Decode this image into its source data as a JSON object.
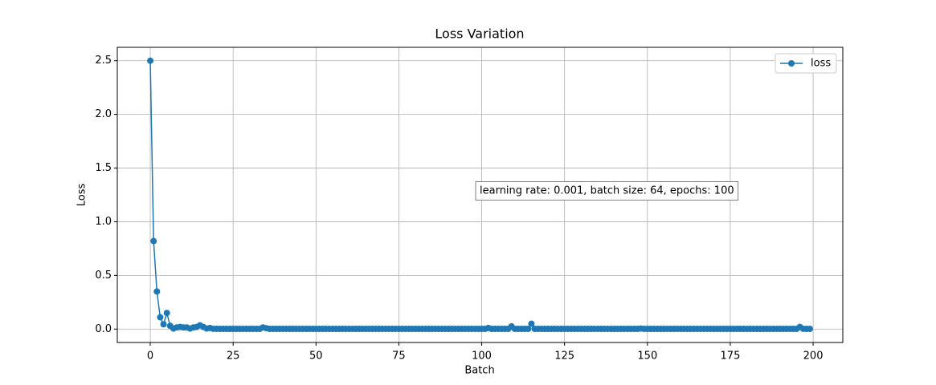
{
  "chart_data": {
    "type": "line",
    "title": "Loss Variation",
    "xlabel": "Batch",
    "ylabel": "Loss",
    "annotation": "learning rate: 0.001, batch size: 64, epochs: 100",
    "x": [
      0,
      1,
      2,
      3,
      4,
      5,
      6,
      7,
      8,
      9,
      10,
      11,
      12,
      13,
      14,
      15,
      16,
      17,
      18,
      19,
      20,
      21,
      22,
      23,
      24,
      25,
      26,
      27,
      28,
      29,
      30,
      31,
      32,
      33,
      34,
      35,
      36,
      37,
      38,
      39,
      40,
      41,
      42,
      43,
      44,
      45,
      46,
      47,
      48,
      49,
      50,
      51,
      52,
      53,
      54,
      55,
      56,
      57,
      58,
      59,
      60,
      61,
      62,
      63,
      64,
      65,
      66,
      67,
      68,
      69,
      70,
      71,
      72,
      73,
      74,
      75,
      76,
      77,
      78,
      79,
      80,
      81,
      82,
      83,
      84,
      85,
      86,
      87,
      88,
      89,
      90,
      91,
      92,
      93,
      94,
      95,
      96,
      97,
      98,
      99,
      100,
      101,
      102,
      103,
      104,
      105,
      106,
      107,
      108,
      109,
      110,
      111,
      112,
      113,
      114,
      115,
      116,
      117,
      118,
      119,
      120,
      121,
      122,
      123,
      124,
      125,
      126,
      127,
      128,
      129,
      130,
      131,
      132,
      133,
      134,
      135,
      136,
      137,
      138,
      139,
      140,
      141,
      142,
      143,
      144,
      145,
      146,
      147,
      148,
      149,
      150,
      151,
      152,
      153,
      154,
      155,
      156,
      157,
      158,
      159,
      160,
      161,
      162,
      163,
      164,
      165,
      166,
      167,
      168,
      169,
      170,
      171,
      172,
      173,
      174,
      175,
      176,
      177,
      178,
      179,
      180,
      181,
      182,
      183,
      184,
      185,
      186,
      187,
      188,
      189,
      190,
      191,
      192,
      193,
      194,
      195,
      196,
      197,
      198,
      199
    ],
    "series": [
      {
        "name": "loss",
        "color": "#1f77b4",
        "values": [
          2.5,
          0.82,
          0.35,
          0.11,
          0.045,
          0.15,
          0.03,
          0.005,
          0.015,
          0.02,
          0.015,
          0.015,
          0.005,
          0.015,
          0.02,
          0.035,
          0.02,
          0.005,
          0.01,
          0.003,
          0.002,
          0.002,
          0.002,
          0.002,
          0.002,
          0.002,
          0.002,
          0.002,
          0.002,
          0.002,
          0.002,
          0.002,
          0.002,
          0.002,
          0.015,
          0.008,
          0.002,
          0.002,
          0.002,
          0.002,
          0.002,
          0.002,
          0.002,
          0.002,
          0.002,
          0.002,
          0.002,
          0.002,
          0.002,
          0.002,
          0.002,
          0.002,
          0.002,
          0.002,
          0.002,
          0.002,
          0.002,
          0.002,
          0.002,
          0.002,
          0.002,
          0.002,
          0.002,
          0.002,
          0.002,
          0.002,
          0.002,
          0.002,
          0.002,
          0.002,
          0.002,
          0.002,
          0.002,
          0.002,
          0.002,
          0.002,
          0.002,
          0.002,
          0.002,
          0.002,
          0.002,
          0.002,
          0.002,
          0.002,
          0.002,
          0.002,
          0.002,
          0.002,
          0.002,
          0.002,
          0.002,
          0.002,
          0.002,
          0.002,
          0.002,
          0.002,
          0.002,
          0.002,
          0.002,
          0.002,
          0.002,
          0.002,
          0.01,
          0.002,
          0.002,
          0.002,
          0.002,
          0.002,
          0.002,
          0.025,
          0.002,
          0.002,
          0.002,
          0.002,
          0.002,
          0.05,
          0.002,
          0.002,
          0.002,
          0.002,
          0.002,
          0.002,
          0.002,
          0.002,
          0.002,
          0.002,
          0.002,
          0.002,
          0.002,
          0.002,
          0.002,
          0.002,
          0.002,
          0.002,
          0.002,
          0.002,
          0.002,
          0.002,
          0.002,
          0.002,
          0.002,
          0.002,
          0.002,
          0.002,
          0.002,
          0.002,
          0.002,
          0.002,
          0.005,
          0.002,
          0.002,
          0.002,
          0.002,
          0.002,
          0.002,
          0.002,
          0.002,
          0.002,
          0.002,
          0.002,
          0.002,
          0.002,
          0.002,
          0.002,
          0.002,
          0.002,
          0.002,
          0.002,
          0.002,
          0.002,
          0.002,
          0.002,
          0.002,
          0.002,
          0.002,
          0.002,
          0.002,
          0.002,
          0.002,
          0.002,
          0.002,
          0.002,
          0.002,
          0.002,
          0.002,
          0.002,
          0.002,
          0.002,
          0.002,
          0.002,
          0.002,
          0.002,
          0.002,
          0.002,
          0.002,
          0.002,
          0.02,
          0.003,
          0.002,
          0.002
        ]
      }
    ],
    "xlim": [
      -9.95,
      208.95
    ],
    "xticks": [
      0,
      25,
      50,
      75,
      100,
      125,
      150,
      175,
      200
    ],
    "ylim": [
      -0.125,
      2.625
    ],
    "yticks": [
      {
        "value": 0,
        "label": "0.0"
      },
      0.5,
      {
        "value": 1,
        "label": "1.0"
      },
      1.5,
      {
        "value": 2,
        "label": "2.0"
      },
      2.5
    ],
    "grid": true,
    "legend": "upper right",
    "marker": "circle"
  }
}
